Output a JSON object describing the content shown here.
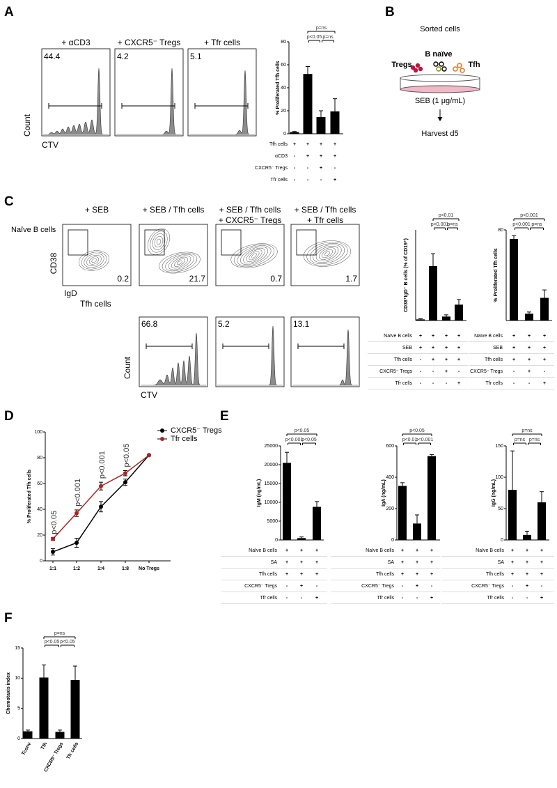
{
  "panel_labels": [
    "A",
    "B",
    "C",
    "D",
    "E",
    "F"
  ],
  "flow_a": {
    "y_label": "Count",
    "x_label": "CTV",
    "plots": [
      {
        "title": "+ αCD3",
        "value": 44.4
      },
      {
        "title": "+ CXCR5⁻ Tregs",
        "value": 4.2
      },
      {
        "title": "+ Tfr cells",
        "value": 5.1
      }
    ]
  },
  "schematic_b": {
    "title": "Sorted cells",
    "cells": [
      "Tregs",
      "B naïve",
      "Tfh"
    ],
    "stimulus": "SEB (1 μg/mL)",
    "readout": "Harvest  d5"
  },
  "flow_c": {
    "b_cells": {
      "row_label": "Naïve B cells",
      "y_label": "CD38",
      "x_label": "IgD",
      "plots": [
        {
          "title": [
            "+ SEB"
          ],
          "value": 0.2
        },
        {
          "title": [
            "+ SEB / Tfh cells"
          ],
          "value": 21.7
        },
        {
          "title": [
            "+ SEB / Tfh cells",
            "+ CXCR5⁻ Tregs"
          ],
          "value": 0.7
        },
        {
          "title": [
            "+ SEB / Tfh cells",
            "+ Tfr cells"
          ],
          "value": 1.7
        }
      ]
    },
    "tfh": {
      "row_label": "Tfh cells",
      "y_label": "Count",
      "x_label": "CTV",
      "values": [
        66.8,
        5.2,
        13.1
      ]
    }
  },
  "chart_data": [
    {
      "type": "bar",
      "y_label": "% Proliferated Tfh cells",
      "categories": [
        null,
        null,
        null,
        null
      ],
      "values": [
        1.5,
        52,
        14.5,
        19.5
      ],
      "errors": [
        0.5,
        6.5,
        5.5,
        11
      ],
      "color": "#000000",
      "ylim": [
        0,
        80
      ],
      "yticks": [
        0,
        20,
        40,
        60,
        80
      ],
      "annotations": [
        "p=ns",
        "p<0.05",
        "p=ns"
      ],
      "conditions": [
        {
          "label": "Tfh cells",
          "marks": [
            "+",
            "+",
            "+",
            "+"
          ]
        },
        {
          "label": "αCD3",
          "marks": [
            "-",
            "+",
            "+",
            "+"
          ]
        },
        {
          "label": "CXCR5⁻ Tregs",
          "marks": [
            "-",
            "-",
            "+",
            "-"
          ]
        },
        {
          "label": "Tfr cells",
          "marks": [
            "-",
            "-",
            "-",
            "+"
          ]
        }
      ]
    },
    {
      "type": "bar",
      "y_label": "CD38⁺IgD⁻ B cells (% of CD19⁺)",
      "categories": [
        null,
        null,
        null,
        null
      ],
      "values": [
        1,
        48,
        3.5,
        14
      ],
      "errors": [
        0.5,
        11,
        1.5,
        4.5
      ],
      "color": "#000000",
      "ylim": [
        0,
        80
      ],
      "annotations": [
        "p<0.01",
        "p<0.001",
        "p=ns"
      ],
      "conditions": [
        {
          "label": "Naïve B cells",
          "marks": [
            "+",
            "+",
            "+",
            "+"
          ]
        },
        {
          "label": "SEB",
          "marks": [
            "+",
            "+",
            "+",
            "+"
          ]
        },
        {
          "label": "Tfh cells",
          "marks": [
            "-",
            "+",
            "+",
            "+"
          ]
        },
        {
          "label": "CXCR5⁻ Tregs",
          "marks": [
            "-",
            "-",
            "+",
            "-"
          ]
        },
        {
          "label": "Tfr cells",
          "marks": [
            "-",
            "-",
            "-",
            "+"
          ]
        }
      ]
    },
    {
      "type": "bar",
      "y_label": "% Proliferated Tfh cells",
      "categories": [
        null,
        null,
        null
      ],
      "values": [
        72,
        6,
        20
      ],
      "errors": [
        3,
        1.5,
        7
      ],
      "color": "#000000",
      "ylim": [
        0,
        80
      ],
      "yticks": [
        80
      ],
      "annotations": [
        "p<0.001",
        "p<0.001",
        "p=ns"
      ],
      "conditions": [
        {
          "label": "Naïve B cells",
          "marks": [
            "+",
            "+",
            "+"
          ]
        },
        {
          "label": "SEB",
          "marks": [
            "+",
            "+",
            "+"
          ]
        },
        {
          "label": "Tfh cells",
          "marks": [
            "+",
            "+",
            "+"
          ]
        },
        {
          "label": "CXCR5⁻ Tregs",
          "marks": [
            "-",
            "+",
            "-"
          ]
        },
        {
          "label": "Tfr cells",
          "marks": [
            "-",
            "-",
            "+"
          ]
        }
      ]
    },
    {
      "type": "line",
      "y_label": "% Proliferated Tfh cells",
      "categories": [
        "1:1",
        "1:2",
        "1:4",
        "1:8",
        "No Tregs"
      ],
      "ylim": [
        0,
        100
      ],
      "yticks": [
        0,
        20,
        40,
        60,
        80,
        100
      ],
      "legend": "upper right",
      "series": [
        {
          "name": "CXCR5⁻ Tregs",
          "color": "#000000",
          "values": [
            7,
            14,
            42,
            61,
            82
          ],
          "errors": [
            2.5,
            3.5,
            4,
            2.5,
            0
          ]
        },
        {
          "name": "Tfr cells",
          "color": "#b22222",
          "values": [
            17,
            37,
            58,
            68,
            82
          ],
          "errors": [
            1,
            2.5,
            3,
            2,
            0
          ]
        }
      ],
      "annotations": [
        "p<0.05",
        "p<0.001",
        "p<0.001",
        "p<0.05"
      ]
    },
    {
      "type": "bar",
      "y_label": "IgM (ng/mL)",
      "categories": [
        null,
        null,
        null
      ],
      "values": [
        20500,
        500,
        8800
      ],
      "errors": [
        2800,
        300,
        1400
      ],
      "color": "#000000",
      "ylim": [
        0,
        25000
      ],
      "yticks": [
        0,
        5000,
        10000,
        15000,
        20000,
        25000
      ],
      "annotations": [
        "p<0.05",
        "p<0.001",
        "p<0.05"
      ],
      "conditions": [
        {
          "label": "Naïve B cells",
          "marks": [
            "+",
            "+",
            "+"
          ]
        },
        {
          "label": "SA",
          "marks": [
            "+",
            "+",
            "+"
          ]
        },
        {
          "label": "Tfh cells",
          "marks": [
            "+",
            "+",
            "+"
          ]
        },
        {
          "label": "CXCR5⁻ Tregs",
          "marks": [
            "-",
            "+",
            "-"
          ]
        },
        {
          "label": "Tfr cells",
          "marks": [
            "-",
            "-",
            "+"
          ]
        }
      ]
    },
    {
      "type": "bar",
      "y_label": "IgA (ng/mL)",
      "categories": [
        null,
        null,
        null
      ],
      "values": [
        345,
        105,
        535
      ],
      "errors": [
        20,
        55,
        10
      ],
      "color": "#000000",
      "ylim": [
        0,
        600
      ],
      "yticks": [
        0,
        200,
        400,
        600
      ],
      "annotations": [
        "p<0.05",
        "p<0.01",
        "p<0.001"
      ],
      "conditions": [
        {
          "label": "Naïve B cells",
          "marks": [
            "+",
            "+",
            "+"
          ]
        },
        {
          "label": "SA",
          "marks": [
            "+",
            "+",
            "+"
          ]
        },
        {
          "label": "Tfh cells",
          "marks": [
            "+",
            "+",
            "+"
          ]
        },
        {
          "label": "CXCR5⁻ Tregs",
          "marks": [
            "-",
            "+",
            "-"
          ]
        },
        {
          "label": "Tfr cells",
          "marks": [
            "-",
            "-",
            "+"
          ]
        }
      ]
    },
    {
      "type": "bar",
      "y_label": "IgG (ng/mL)",
      "categories": [
        null,
        null,
        null
      ],
      "values": [
        80,
        8,
        60
      ],
      "errors": [
        62,
        6,
        17
      ],
      "color": "#000000",
      "ylim": [
        0,
        150
      ],
      "yticks": [
        0,
        50,
        100,
        150
      ],
      "annotations": [
        "p=ns",
        "p=ns",
        "p=ns"
      ],
      "conditions": [
        {
          "label": "Naïve B cells",
          "marks": [
            "+",
            "+",
            "+"
          ]
        },
        {
          "label": "SA",
          "marks": [
            "+",
            "+",
            "+"
          ]
        },
        {
          "label": "Tfh cells",
          "marks": [
            "+",
            "+",
            "+"
          ]
        },
        {
          "label": "CXCR5⁻ Tregs",
          "marks": [
            "-",
            "+",
            "-"
          ]
        },
        {
          "label": "Tfr cells",
          "marks": [
            "-",
            "-",
            "+"
          ]
        }
      ]
    },
    {
      "type": "bar",
      "y_label": "Chemotaxis index",
      "categories": [
        "Tconv",
        "Tfh",
        "CXCR5⁻ Tregs",
        "Tfr cells"
      ],
      "values": [
        1.2,
        10.1,
        1.1,
        9.7
      ],
      "errors": [
        0.2,
        2.1,
        0.3,
        2.3
      ],
      "color": "#000000",
      "ylim": [
        0,
        15
      ],
      "yticks": [
        0,
        5,
        10,
        15
      ],
      "annotations": [
        "p=ns",
        "p<0.05",
        "p<0.05"
      ]
    }
  ]
}
